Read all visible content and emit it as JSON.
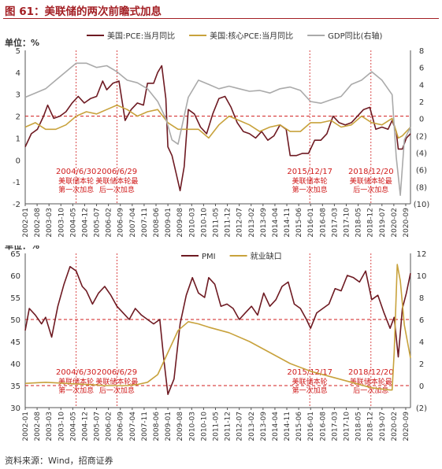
{
  "figure": {
    "title": "图 61：美联储的两次前瞻式加息",
    "source": "资料来源：Wind，招商证券"
  },
  "chart_data": [
    {
      "type": "line",
      "unit_label": "单位：%",
      "ylim_left": [
        -2,
        5
      ],
      "yticks_left": [
        "-2",
        "-1",
        "0",
        "1",
        "2",
        "3",
        "4",
        "5"
      ],
      "ylim_right": [
        -10,
        8
      ],
      "yticks_right": [
        "(10)",
        "(8)",
        "(6)",
        "(4)",
        "(2)",
        "0",
        "2",
        "4",
        "6",
        "8"
      ],
      "x_ticks": [
        "2002-01",
        "2002-08",
        "2003-03",
        "2003-10",
        "2004-05",
        "2004-12",
        "2005-07",
        "2006-02",
        "2006-09",
        "2007-04",
        "2007-11",
        "2008-06",
        "2009-01",
        "2009-08",
        "2010-03",
        "2010-10",
        "2011-05",
        "2011-12",
        "2012-07",
        "2013-02",
        "2013-09",
        "2014-04",
        "2014-11",
        "2015-06",
        "2016-01",
        "2016-08",
        "2017-03",
        "2017-10",
        "2018-05",
        "2018-12",
        "2019-07",
        "2020-02",
        "2020-09"
      ],
      "xlim": [
        2002.0,
        2020.9
      ],
      "reference_line": {
        "axis": "left",
        "value": 2
      },
      "legend": "top",
      "series": [
        {
          "name": "美国:PCE:当月同比",
          "axis": "left",
          "color": "#6e1a22",
          "x": [
            2002.0,
            2002.3,
            2002.6,
            2002.9,
            2003.1,
            2003.4,
            2003.7,
            2004.0,
            2004.3,
            2004.6,
            2004.9,
            2005.2,
            2005.5,
            2005.8,
            2006.0,
            2006.3,
            2006.6,
            2006.9,
            2007.2,
            2007.5,
            2007.8,
            2008.0,
            2008.3,
            2008.5,
            2008.7,
            2008.9,
            2009.0,
            2009.2,
            2009.4,
            2009.6,
            2009.8,
            2010.0,
            2010.3,
            2010.6,
            2010.9,
            2011.2,
            2011.5,
            2011.8,
            2012.1,
            2012.4,
            2012.7,
            2013.0,
            2013.3,
            2013.6,
            2013.9,
            2014.2,
            2014.5,
            2014.8,
            2015.0,
            2015.3,
            2015.6,
            2015.9,
            2016.2,
            2016.5,
            2016.8,
            2017.1,
            2017.4,
            2017.7,
            2018.0,
            2018.3,
            2018.6,
            2018.9,
            2019.2,
            2019.5,
            2019.8,
            2020.0,
            2020.2,
            2020.3,
            2020.5,
            2020.7,
            2020.9
          ],
          "y": [
            0.6,
            1.2,
            1.4,
            2.0,
            2.5,
            1.9,
            2.0,
            2.2,
            2.6,
            2.9,
            2.6,
            2.8,
            2.9,
            3.6,
            3.2,
            3.5,
            3.6,
            1.8,
            2.3,
            2.6,
            2.5,
            3.5,
            3.5,
            4.0,
            4.3,
            2.8,
            0.6,
            0.2,
            -0.6,
            -1.4,
            -0.3,
            2.3,
            2.1,
            1.5,
            1.2,
            2.1,
            2.8,
            2.9,
            2.4,
            1.7,
            1.3,
            1.2,
            1.0,
            1.3,
            0.9,
            1.1,
            1.6,
            1.4,
            0.2,
            0.2,
            0.3,
            0.3,
            0.9,
            0.9,
            1.2,
            2.0,
            1.7,
            1.6,
            1.7,
            2.0,
            2.3,
            2.4,
            1.4,
            1.5,
            1.4,
            1.8,
            1.3,
            0.5,
            0.5,
            1.0,
            1.2
          ]
        },
        {
          "name": "美国:核心PCE:当月同比",
          "axis": "left",
          "color": "#c8a23c",
          "x": [
            2002.0,
            2002.5,
            2003.0,
            2003.5,
            2004.0,
            2004.5,
            2005.0,
            2005.5,
            2006.0,
            2006.5,
            2007.0,
            2007.5,
            2008.0,
            2008.5,
            2009.0,
            2009.5,
            2010.0,
            2010.5,
            2011.0,
            2011.5,
            2012.0,
            2012.5,
            2013.0,
            2013.5,
            2014.0,
            2014.5,
            2015.0,
            2015.5,
            2016.0,
            2016.5,
            2017.0,
            2017.5,
            2018.0,
            2018.5,
            2019.0,
            2019.5,
            2020.0,
            2020.3,
            2020.5,
            2020.9
          ],
          "y": [
            1.5,
            1.7,
            1.4,
            1.4,
            1.6,
            2.0,
            2.2,
            2.1,
            2.3,
            2.5,
            2.3,
            2.0,
            2.2,
            2.3,
            1.7,
            1.4,
            1.4,
            1.4,
            1.0,
            1.6,
            2.0,
            1.8,
            1.6,
            1.3,
            1.5,
            1.6,
            1.3,
            1.3,
            1.7,
            1.7,
            1.8,
            1.5,
            1.6,
            2.0,
            1.7,
            1.6,
            1.9,
            1.0,
            1.1,
            1.5
          ]
        },
        {
          "name": "GDP同比(右轴)",
          "axis": "right",
          "color": "#aaaaaa",
          "x": [
            2002.0,
            2002.5,
            2003.0,
            2003.5,
            2004.0,
            2004.5,
            2005.0,
            2005.5,
            2006.0,
            2006.5,
            2007.0,
            2007.5,
            2008.0,
            2008.5,
            2008.9,
            2009.2,
            2009.5,
            2010.0,
            2010.5,
            2011.0,
            2011.5,
            2012.0,
            2012.5,
            2013.0,
            2013.5,
            2014.0,
            2014.5,
            2015.0,
            2015.5,
            2016.0,
            2016.5,
            2017.0,
            2017.5,
            2018.0,
            2018.5,
            2019.0,
            2019.5,
            2020.0,
            2020.2,
            2020.4,
            2020.6,
            2020.9
          ],
          "y": [
            2.5,
            3.0,
            3.5,
            4.5,
            5.5,
            6.5,
            6.5,
            6.0,
            6.2,
            5.5,
            4.5,
            4.2,
            3.5,
            2.0,
            0.0,
            -2.5,
            -3.0,
            2.5,
            4.5,
            4.0,
            3.5,
            3.8,
            3.5,
            3.2,
            3.3,
            3.0,
            3.5,
            3.7,
            3.3,
            2.0,
            1.8,
            2.2,
            2.6,
            4.0,
            4.5,
            5.5,
            4.5,
            2.8,
            -4.5,
            -9.0,
            -2.5,
            -1.0
          ]
        }
      ],
      "annotations": [
        {
          "x": 2004.5,
          "date": "2004/6/30",
          "label_line1": "美联储本轮",
          "label_line2": "第一次加息"
        },
        {
          "x": 2006.5,
          "date": "2006/6/29",
          "label_line1": "美联储本轮最",
          "label_line2": "后一次加息"
        },
        {
          "x": 2015.96,
          "date": "2015/12/17",
          "label_line1": "美联储本轮",
          "label_line2": "第一次加息"
        },
        {
          "x": 2018.96,
          "date": "2018/12/20",
          "label_line1": "美联储本轮最",
          "label_line2": "后一次加息"
        }
      ]
    },
    {
      "type": "line",
      "unit_label": "单位：%",
      "ylim_left": [
        30,
        65
      ],
      "yticks_left": [
        "30",
        "35",
        "40",
        "45",
        "50",
        "55",
        "60",
        "65"
      ],
      "ylim_right": [
        -2,
        12
      ],
      "yticks_right": [
        "(2)",
        "0",
        "2",
        "4",
        "6",
        "8",
        "10",
        "12"
      ],
      "x_ticks": [
        "2002-01",
        "2002-08",
        "2003-03",
        "2003-10",
        "2004-05",
        "2004-12",
        "2005-07",
        "2006-02",
        "2006-09",
        "2007-04",
        "2007-11",
        "2008-06",
        "2009-01",
        "2009-08",
        "2010-03",
        "2010-10",
        "2011-05",
        "2011-12",
        "2012-07",
        "2013-02",
        "2013-09",
        "2014-04",
        "2014-11",
        "2015-06",
        "2016-01",
        "2016-08",
        "2017-03",
        "2017-10",
        "2018-05",
        "2018-12",
        "2019-07",
        "2020-02",
        "2020-09"
      ],
      "xlim": [
        2002.0,
        2020.9
      ],
      "reference_lines": [
        {
          "axis": "left",
          "value": 50
        },
        {
          "axis": "left",
          "value": 35
        }
      ],
      "legend": "top",
      "series": [
        {
          "name": "PMI",
          "axis": "left",
          "color": "#6e1a22",
          "x": [
            2002.0,
            2002.2,
            2002.5,
            2002.8,
            2003.0,
            2003.3,
            2003.6,
            2003.9,
            2004.2,
            2004.5,
            2004.8,
            2005.0,
            2005.3,
            2005.6,
            2005.9,
            2006.2,
            2006.5,
            2006.8,
            2007.1,
            2007.4,
            2007.7,
            2008.0,
            2008.3,
            2008.6,
            2008.8,
            2009.0,
            2009.3,
            2009.6,
            2009.9,
            2010.2,
            2010.5,
            2010.8,
            2011.0,
            2011.3,
            2011.6,
            2011.9,
            2012.2,
            2012.5,
            2012.8,
            2013.1,
            2013.4,
            2013.7,
            2014.0,
            2014.3,
            2014.6,
            2014.9,
            2015.2,
            2015.5,
            2015.8,
            2016.0,
            2016.3,
            2016.6,
            2016.9,
            2017.2,
            2017.5,
            2017.8,
            2018.1,
            2018.4,
            2018.7,
            2019.0,
            2019.3,
            2019.6,
            2019.9,
            2020.1,
            2020.3,
            2020.5,
            2020.7,
            2020.9
          ],
          "y": [
            47.5,
            52.5,
            51.0,
            49.0,
            50.5,
            46.0,
            53.0,
            58.0,
            62.0,
            61.0,
            57.5,
            56.5,
            53.5,
            56.0,
            57.5,
            55.5,
            53.0,
            51.5,
            50.0,
            52.5,
            51.0,
            50.0,
            49.0,
            50.0,
            41.0,
            33.0,
            36.5,
            49.0,
            55.5,
            59.5,
            56.0,
            55.0,
            59.5,
            58.0,
            53.0,
            53.5,
            52.5,
            50.0,
            51.5,
            53.0,
            51.0,
            56.0,
            53.0,
            54.5,
            57.5,
            58.5,
            53.5,
            52.5,
            50.0,
            48.0,
            51.5,
            52.5,
            53.5,
            57.0,
            56.5,
            60.0,
            59.5,
            58.5,
            61.0,
            54.5,
            55.5,
            51.5,
            48.0,
            50.5,
            41.5,
            52.5,
            56.0,
            60.5
          ]
        },
        {
          "name": "就业缺口",
          "axis": "right",
          "color": "#c8a23c",
          "x": [
            2002.0,
            2003.0,
            2004.0,
            2005.0,
            2006.0,
            2007.0,
            2007.5,
            2008.0,
            2008.5,
            2009.0,
            2009.5,
            2010.0,
            2010.5,
            2011.0,
            2012.0,
            2013.0,
            2014.0,
            2015.0,
            2016.0,
            2017.0,
            2018.0,
            2019.0,
            2019.9,
            2020.0,
            2020.1,
            2020.25,
            2020.4,
            2020.6,
            2020.8,
            2020.9
          ],
          "y": [
            0.2,
            0.3,
            0.2,
            0.1,
            0.0,
            0.0,
            0.1,
            0.3,
            1.0,
            3.0,
            5.0,
            5.8,
            5.6,
            5.3,
            4.8,
            4.0,
            3.0,
            2.0,
            1.3,
            0.8,
            0.3,
            -0.2,
            -0.4,
            -0.4,
            3.0,
            11.0,
            9.5,
            5.5,
            3.5,
            2.5
          ]
        }
      ],
      "annotations": [
        {
          "x": 2004.5,
          "date": "2004/6/30",
          "label_line1": "美联储本轮",
          "label_line2": "第一次加息"
        },
        {
          "x": 2006.5,
          "date": "2006/6/29",
          "label_line1": "美联储本轮最",
          "label_line2": "后一次加息"
        },
        {
          "x": 2015.96,
          "date": "2015/12/17",
          "label_line1": "美联储本轮",
          "label_line2": "第一次加息"
        },
        {
          "x": 2018.96,
          "date": "2018/12/20",
          "label_line1": "美联储本轮最",
          "label_line2": "后一次加息"
        }
      ]
    }
  ]
}
